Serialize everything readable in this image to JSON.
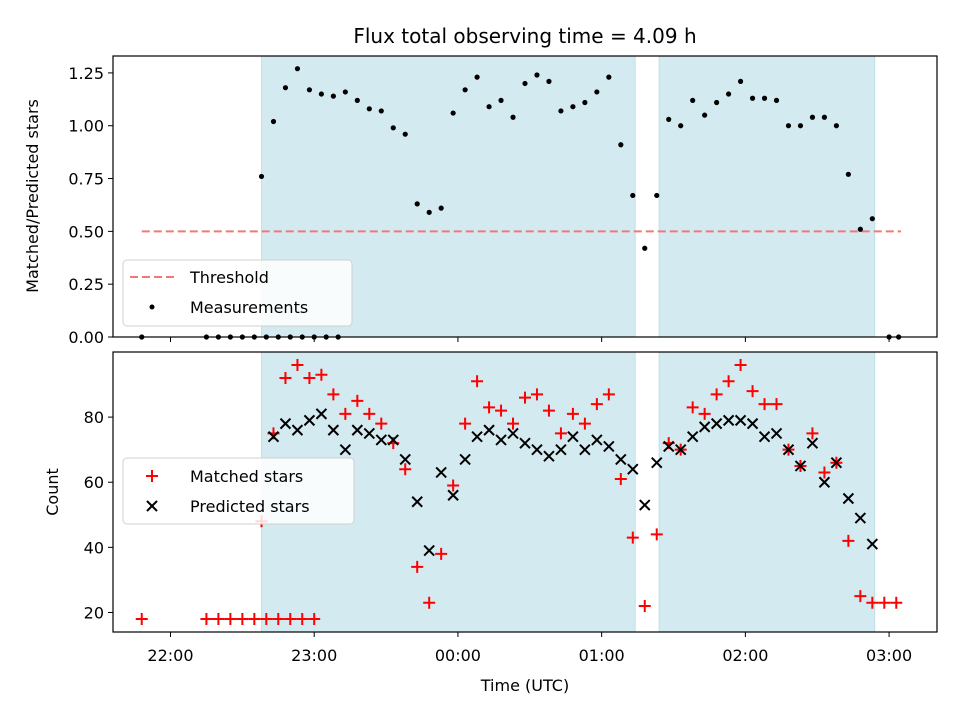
{
  "chart_data": [
    {
      "type": "scatter",
      "title": "Flux total observing time = 4.09 h",
      "xlabel": "",
      "ylabel": "Matched/Predicted stars",
      "xlim": [
        "21:36",
        "03:20"
      ],
      "ylim": [
        0,
        1.33
      ],
      "yticks": [
        "0.00",
        "0.25",
        "0.50",
        "0.75",
        "1.00",
        "1.25"
      ],
      "shaded_intervals": [
        [
          "22:38",
          "01:14"
        ],
        [
          "01:24",
          "02:54"
        ]
      ],
      "shade_color": "#d4eaf1",
      "threshold": {
        "label": "Threshold",
        "value": 0.5,
        "x_start": "21:48",
        "x_end": "03:05",
        "color": "#f07878"
      },
      "series": [
        {
          "name": "Measurements",
          "marker": "dot",
          "color": "#000000",
          "points": [
            [
              "21:48",
              0
            ],
            [
              "22:15",
              0
            ],
            [
              "22:20",
              0
            ],
            [
              "22:25",
              0
            ],
            [
              "22:30",
              0
            ],
            [
              "22:35",
              0
            ],
            [
              "22:40",
              0
            ],
            [
              "22:45",
              0
            ],
            [
              "22:50",
              0
            ],
            [
              "22:55",
              0
            ],
            [
              "23:00",
              0
            ],
            [
              "23:05",
              0
            ],
            [
              "23:10",
              0
            ],
            [
              "22:38",
              0.76
            ],
            [
              "22:43",
              1.02
            ],
            [
              "22:48",
              1.18
            ],
            [
              "22:53",
              1.27
            ],
            [
              "22:58",
              1.17
            ],
            [
              "23:03",
              1.15
            ],
            [
              "23:08",
              1.14
            ],
            [
              "23:13",
              1.16
            ],
            [
              "23:18",
              1.12
            ],
            [
              "23:23",
              1.08
            ],
            [
              "23:28",
              1.07
            ],
            [
              "23:33",
              0.99
            ],
            [
              "23:38",
              0.96
            ],
            [
              "23:43",
              0.63
            ],
            [
              "23:48",
              0.59
            ],
            [
              "23:53",
              0.61
            ],
            [
              "23:58",
              1.06
            ],
            [
              "00:03",
              1.17
            ],
            [
              "00:08",
              1.23
            ],
            [
              "00:13",
              1.09
            ],
            [
              "00:18",
              1.12
            ],
            [
              "00:23",
              1.04
            ],
            [
              "00:28",
              1.2
            ],
            [
              "00:33",
              1.24
            ],
            [
              "00:38",
              1.21
            ],
            [
              "00:43",
              1.07
            ],
            [
              "00:48",
              1.09
            ],
            [
              "00:53",
              1.11
            ],
            [
              "00:58",
              1.16
            ],
            [
              "01:03",
              1.23
            ],
            [
              "01:08",
              0.91
            ],
            [
              "01:13",
              0.67
            ],
            [
              "01:18",
              0.42
            ],
            [
              "01:23",
              0.67
            ],
            [
              "01:28",
              1.03
            ],
            [
              "01:33",
              1.0
            ],
            [
              "01:38",
              1.12
            ],
            [
              "01:43",
              1.05
            ],
            [
              "01:48",
              1.11
            ],
            [
              "01:53",
              1.15
            ],
            [
              "01:58",
              1.21
            ],
            [
              "02:03",
              1.13
            ],
            [
              "02:08",
              1.13
            ],
            [
              "02:13",
              1.12
            ],
            [
              "02:18",
              1.0
            ],
            [
              "02:23",
              1.0
            ],
            [
              "02:28",
              1.04
            ],
            [
              "02:33",
              1.04
            ],
            [
              "02:38",
              1.0
            ],
            [
              "02:43",
              0.77
            ],
            [
              "02:48",
              0.51
            ],
            [
              "02:53",
              0.56
            ],
            [
              "03:00",
              0
            ],
            [
              "03:04",
              0
            ]
          ]
        }
      ],
      "legend": {
        "position": "lower-left",
        "entries": [
          "Threshold",
          "Measurements"
        ]
      }
    },
    {
      "type": "scatter",
      "xlabel": "Time (UTC)",
      "ylabel": "Count",
      "xlim": [
        "21:36",
        "03:20"
      ],
      "ylim": [
        14,
        100
      ],
      "yticks": [
        "20",
        "40",
        "60",
        "80"
      ],
      "xticks": [
        "22:00",
        "23:00",
        "00:00",
        "01:00",
        "02:00",
        "03:00"
      ],
      "shaded_intervals": [
        [
          "22:38",
          "01:14"
        ],
        [
          "01:24",
          "02:54"
        ]
      ],
      "series": [
        {
          "name": "Matched stars",
          "marker": "plus",
          "color": "#ff0000",
          "points": [
            [
              "21:48",
              18
            ],
            [
              "22:15",
              18
            ],
            [
              "22:20",
              18
            ],
            [
              "22:25",
              18
            ],
            [
              "22:30",
              18
            ],
            [
              "22:35",
              18
            ],
            [
              "22:40",
              18
            ],
            [
              "22:45",
              18
            ],
            [
              "22:50",
              18
            ],
            [
              "22:55",
              18
            ],
            [
              "23:00",
              18
            ],
            [
              "22:38",
              48
            ],
            [
              "22:43",
              75
            ],
            [
              "22:48",
              92
            ],
            [
              "22:53",
              96
            ],
            [
              "22:58",
              92
            ],
            [
              "23:03",
              93
            ],
            [
              "23:08",
              87
            ],
            [
              "23:13",
              81
            ],
            [
              "23:18",
              85
            ],
            [
              "23:23",
              81
            ],
            [
              "23:28",
              78
            ],
            [
              "23:33",
              72
            ],
            [
              "23:38",
              64
            ],
            [
              "23:43",
              34
            ],
            [
              "23:48",
              23
            ],
            [
              "23:53",
              38
            ],
            [
              "23:58",
              59
            ],
            [
              "00:03",
              78
            ],
            [
              "00:08",
              91
            ],
            [
              "00:13",
              83
            ],
            [
              "00:18",
              82
            ],
            [
              "00:23",
              78
            ],
            [
              "00:28",
              86
            ],
            [
              "00:33",
              87
            ],
            [
              "00:38",
              82
            ],
            [
              "00:43",
              75
            ],
            [
              "00:48",
              81
            ],
            [
              "00:53",
              78
            ],
            [
              "00:58",
              84
            ],
            [
              "01:03",
              87
            ],
            [
              "01:08",
              61
            ],
            [
              "01:13",
              43
            ],
            [
              "01:18",
              22
            ],
            [
              "01:23",
              44
            ],
            [
              "01:28",
              72
            ],
            [
              "01:33",
              70
            ],
            [
              "01:38",
              83
            ],
            [
              "01:43",
              81
            ],
            [
              "01:48",
              87
            ],
            [
              "01:53",
              91
            ],
            [
              "01:58",
              96
            ],
            [
              "02:03",
              88
            ],
            [
              "02:08",
              84
            ],
            [
              "02:13",
              84
            ],
            [
              "02:18",
              70
            ],
            [
              "02:23",
              65
            ],
            [
              "02:28",
              75
            ],
            [
              "02:33",
              63
            ],
            [
              "02:38",
              66
            ],
            [
              "02:43",
              42
            ],
            [
              "02:48",
              25
            ],
            [
              "02:53",
              23
            ],
            [
              "02:58",
              23
            ],
            [
              "03:03",
              23
            ]
          ]
        },
        {
          "name": "Predicted stars",
          "marker": "x",
          "color": "#000000",
          "points": [
            [
              "22:43",
              74
            ],
            [
              "22:48",
              78
            ],
            [
              "22:53",
              76
            ],
            [
              "22:58",
              79
            ],
            [
              "23:03",
              81
            ],
            [
              "23:08",
              76
            ],
            [
              "23:13",
              70
            ],
            [
              "23:18",
              76
            ],
            [
              "23:23",
              75
            ],
            [
              "23:28",
              73
            ],
            [
              "23:33",
              73
            ],
            [
              "23:38",
              67
            ],
            [
              "23:43",
              54
            ],
            [
              "23:48",
              39
            ],
            [
              "23:53",
              63
            ],
            [
              "23:58",
              56
            ],
            [
              "00:03",
              67
            ],
            [
              "00:08",
              74
            ],
            [
              "00:13",
              76
            ],
            [
              "00:18",
              73
            ],
            [
              "00:23",
              75
            ],
            [
              "00:28",
              72
            ],
            [
              "00:33",
              70
            ],
            [
              "00:38",
              68
            ],
            [
              "00:43",
              70
            ],
            [
              "00:48",
              74
            ],
            [
              "00:53",
              70
            ],
            [
              "00:58",
              73
            ],
            [
              "01:03",
              71
            ],
            [
              "01:08",
              67
            ],
            [
              "01:13",
              64
            ],
            [
              "01:18",
              53
            ],
            [
              "01:23",
              66
            ],
            [
              "01:28",
              71
            ],
            [
              "01:33",
              70
            ],
            [
              "01:38",
              74
            ],
            [
              "01:43",
              77
            ],
            [
              "01:48",
              78
            ],
            [
              "01:53",
              79
            ],
            [
              "01:58",
              79
            ],
            [
              "02:03",
              78
            ],
            [
              "02:08",
              74
            ],
            [
              "02:13",
              75
            ],
            [
              "02:18",
              70
            ],
            [
              "02:23",
              65
            ],
            [
              "02:28",
              72
            ],
            [
              "02:33",
              60
            ],
            [
              "02:38",
              66
            ],
            [
              "02:43",
              55
            ],
            [
              "02:48",
              49
            ],
            [
              "02:53",
              41
            ]
          ]
        }
      ],
      "legend": {
        "position": "center-left",
        "entries": [
          "Matched stars",
          "Predicted stars"
        ]
      }
    }
  ]
}
